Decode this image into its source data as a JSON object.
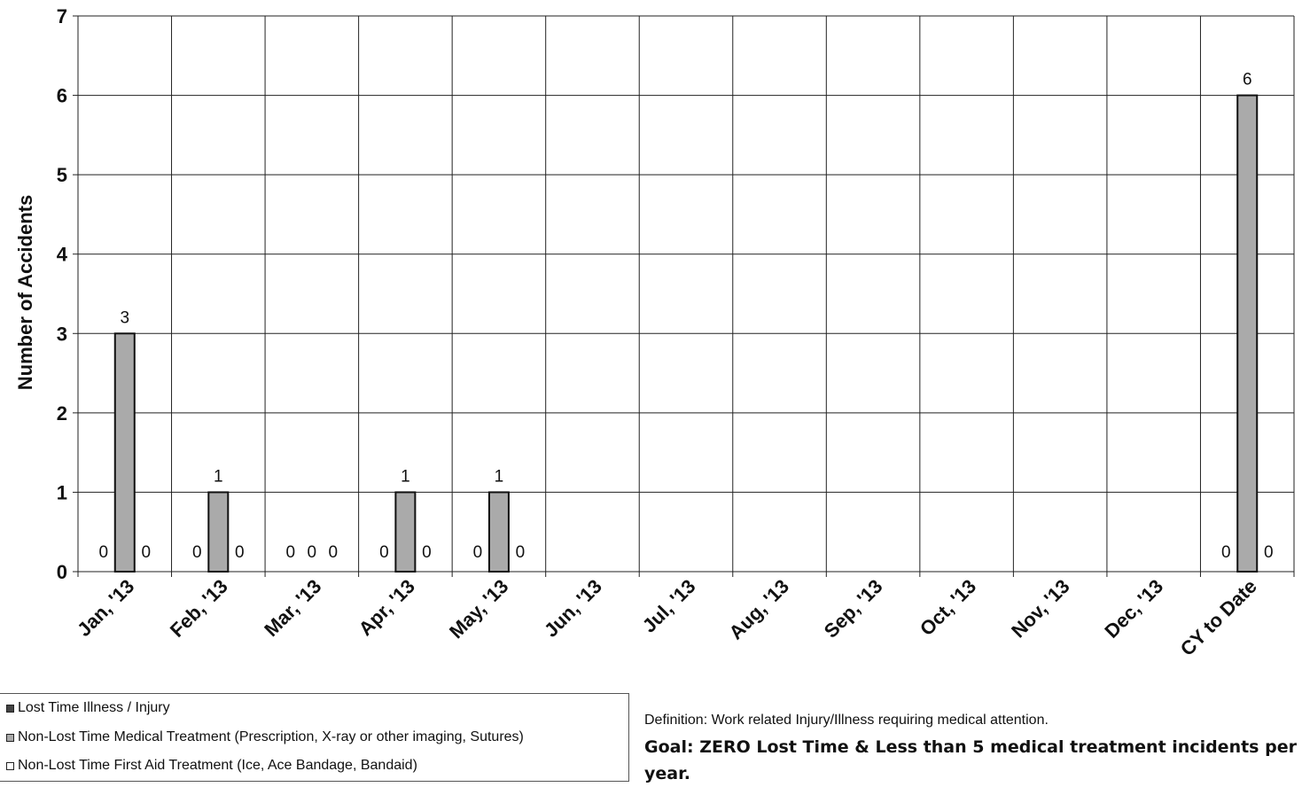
{
  "chart_data": {
    "type": "bar",
    "categories": [
      "Jan, '13",
      "Feb, '13",
      "Mar, '13",
      "Apr, '13",
      "May, '13",
      "Jun, '13",
      "Jul, '13",
      "Aug, '13",
      "Sep, '13",
      "Oct, '13",
      "Nov, '13",
      "Dec, '13",
      "CY to Date"
    ],
    "series": [
      {
        "name": "Lost Time Illness / Injury",
        "values": [
          0,
          0,
          0,
          0,
          0,
          null,
          null,
          null,
          null,
          null,
          null,
          null,
          0
        ],
        "color": "#444444"
      },
      {
        "name": "Non-Lost Time Medical Treatment (Prescription, X-ray or other imaging, Sutures)",
        "values": [
          3,
          1,
          0,
          1,
          1,
          null,
          null,
          null,
          null,
          null,
          null,
          null,
          6
        ],
        "color": "#aaaaaa"
      },
      {
        "name": "Non-Lost Time First Aid Treatment (Ice, Ace Bandage, Bandaid)",
        "values": [
          0,
          0,
          0,
          0,
          0,
          null,
          null,
          null,
          null,
          null,
          null,
          null,
          0
        ],
        "color": "#ffffff"
      }
    ],
    "ylabel": "Number of Accidents",
    "xlabel": "",
    "ylim": [
      0,
      7
    ],
    "yticks": [
      "0",
      "1",
      "2",
      "3",
      "4",
      "5",
      "6",
      "7"
    ],
    "grid": true,
    "legend_position": "bottom-left"
  },
  "legend": {
    "items": [
      {
        "label": "Lost Time Illness / Injury",
        "color": "#444444"
      },
      {
        "label": "Non-Lost Time Medical Treatment (Prescription, X-ray or other imaging, Sutures)",
        "color": "#aaaaaa"
      },
      {
        "label": "Non-Lost Time First Aid Treatment (Ice, Ace Bandage, Bandaid)",
        "color": "#ffffff"
      }
    ]
  },
  "notes": {
    "definition": "Definition: Work related Injury/Illness requiring medical attention.",
    "goal": "Goal: ZERO Lost Time & Less than 5 medical treatment incidents per year."
  }
}
